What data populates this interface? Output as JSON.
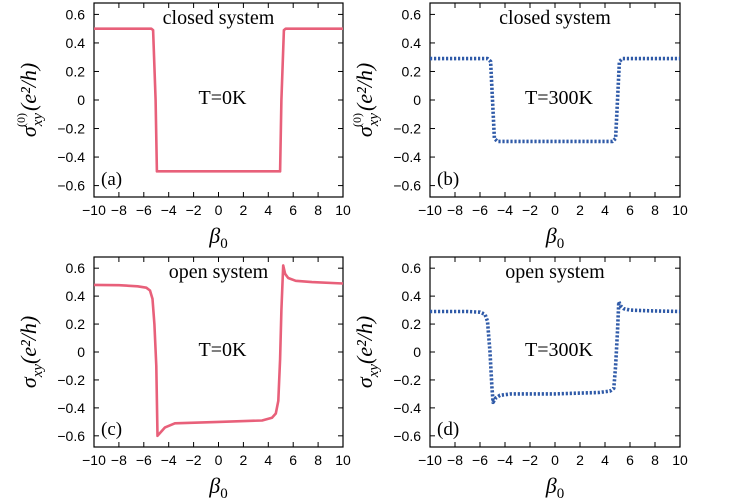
{
  "chart_data": [
    {
      "type": "line",
      "panel": "(a)",
      "annotation_top": "closed system",
      "annotation_temp": "T=0K",
      "xlabel": "β",
      "xlabel_sub": "0",
      "ylabel_symbol": "σ",
      "ylabel_sub": "xy",
      "ylabel_sup": "(0)",
      "ylabel_units": "(e²/h)",
      "xlim": [
        -10,
        10
      ],
      "ylim": [
        -0.68,
        0.68
      ],
      "xticks": [
        "−10",
        "−8",
        "−6",
        "−4",
        "−2",
        "0",
        "2",
        "4",
        "6",
        "8",
        "10"
      ],
      "yticks": [
        "0.6",
        "0.4",
        "0.2",
        "0",
        "−0.2",
        "−0.4",
        "−0.6"
      ],
      "series": [
        {
          "color": "#e8607a",
          "style": "solid",
          "x": [
            -10,
            -5.4,
            -5.25,
            -5.05,
            -4.95,
            4.95,
            5.05,
            5.25,
            5.4,
            10
          ],
          "y": [
            0.5,
            0.5,
            0.49,
            0.0,
            -0.5,
            -0.5,
            0.0,
            0.49,
            0.5,
            0.5
          ]
        }
      ]
    },
    {
      "type": "line",
      "panel": "(b)",
      "annotation_top": "closed system",
      "annotation_temp": "T=300K",
      "xlabel": "β",
      "xlabel_sub": "0",
      "ylabel_symbol": "σ",
      "ylabel_sub": "xy",
      "ylabel_sup": "(0)",
      "ylabel_units": "(e²/h)",
      "xlim": [
        -10,
        10
      ],
      "ylim": [
        -0.68,
        0.68
      ],
      "xticks": [
        "−10",
        "−8",
        "−6",
        "−4",
        "−2",
        "0",
        "2",
        "4",
        "6",
        "8",
        "10"
      ],
      "yticks": [
        "0.6",
        "0.4",
        "0.2",
        "0",
        "−0.2",
        "−0.4",
        "−0.6"
      ],
      "series": [
        {
          "color": "#2f5aa8",
          "style": "dotted",
          "x": [
            -10,
            -5.4,
            -5.15,
            -5.0,
            -4.85,
            -4.6,
            4.6,
            4.85,
            5.0,
            5.15,
            5.4,
            10
          ],
          "y": [
            0.29,
            0.29,
            0.27,
            0.0,
            -0.27,
            -0.29,
            -0.29,
            -0.27,
            0.0,
            0.27,
            0.29,
            0.29
          ]
        }
      ]
    },
    {
      "type": "line",
      "panel": "(c)",
      "annotation_top": "open system",
      "annotation_temp": "T=0K",
      "xlabel": "β",
      "xlabel_sub": "0",
      "ylabel_symbol": "σ",
      "ylabel_sub": "xy",
      "ylabel_sup": "",
      "ylabel_units": "(e²/h)",
      "xlim": [
        -10,
        10
      ],
      "ylim": [
        -0.68,
        0.68
      ],
      "xticks": [
        "−10",
        "−8",
        "−6",
        "−4",
        "−2",
        "0",
        "2",
        "4",
        "6",
        "8",
        "10"
      ],
      "yticks": [
        "0.6",
        "0.4",
        "0.2",
        "0",
        "−0.2",
        "−0.4",
        "−0.6"
      ],
      "series": [
        {
          "color": "#e8607a",
          "style": "solid",
          "x": [
            -10,
            -8,
            -6.5,
            -5.8,
            -5.5,
            -5.3,
            -5.15,
            -5.0,
            -4.9,
            -4.7,
            -4.3,
            -3.5,
            0,
            3.5,
            4.3,
            4.6,
            4.8,
            4.95,
            5.05,
            5.2,
            5.35,
            5.6,
            6.2,
            7.5,
            10
          ],
          "y": [
            0.48,
            0.478,
            0.47,
            0.46,
            0.44,
            0.38,
            0.2,
            -0.1,
            -0.6,
            -0.58,
            -0.54,
            -0.51,
            -0.5,
            -0.49,
            -0.47,
            -0.44,
            -0.35,
            -0.05,
            0.3,
            0.62,
            0.56,
            0.53,
            0.51,
            0.5,
            0.49
          ]
        }
      ]
    },
    {
      "type": "line",
      "panel": "(d)",
      "annotation_top": "open system",
      "annotation_temp": "T=300K",
      "xlabel": "β",
      "xlabel_sub": "0",
      "ylabel_symbol": "σ",
      "ylabel_sub": "xy",
      "ylabel_sup": "",
      "ylabel_units": "(e²/h)",
      "xlim": [
        -10,
        10
      ],
      "ylim": [
        -0.68,
        0.68
      ],
      "xticks": [
        "−10",
        "−8",
        "−6",
        "−4",
        "−2",
        "0",
        "2",
        "4",
        "6",
        "8",
        "10"
      ],
      "yticks": [
        "0.6",
        "0.4",
        "0.2",
        "0",
        "−0.2",
        "−0.4",
        "−0.6"
      ],
      "series": [
        {
          "color": "#2f5aa8",
          "style": "dotted",
          "x": [
            -10,
            -7,
            -6,
            -5.6,
            -5.4,
            -5.2,
            -5.05,
            -4.95,
            -4.75,
            -4.4,
            -3.5,
            0,
            3.5,
            4.4,
            4.7,
            4.85,
            5.0,
            5.1,
            5.25,
            5.5,
            6.0,
            7.5,
            10
          ],
          "y": [
            0.29,
            0.29,
            0.285,
            0.27,
            0.22,
            0.0,
            -0.25,
            -0.36,
            -0.33,
            -0.31,
            -0.3,
            -0.3,
            -0.29,
            -0.28,
            -0.26,
            -0.1,
            0.15,
            0.36,
            0.33,
            0.31,
            0.3,
            0.295,
            0.29
          ]
        }
      ]
    }
  ]
}
